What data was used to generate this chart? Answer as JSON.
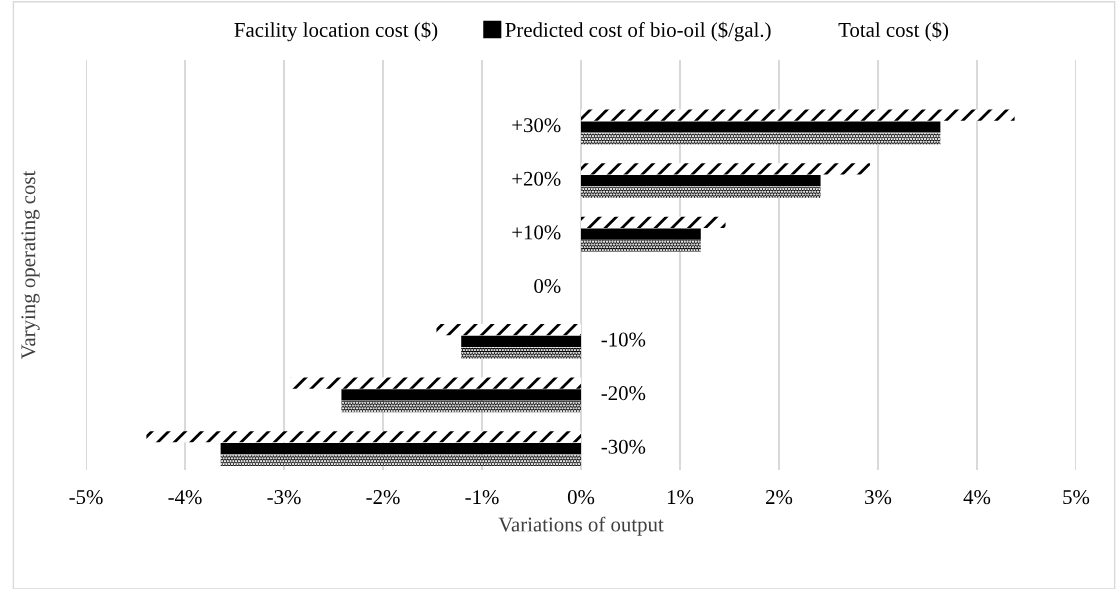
{
  "chart_data": {
    "type": "bar",
    "orientation": "horizontal",
    "xlabel": "Variations of output",
    "ylabel": "Varying operating cost",
    "categories": [
      "+30%",
      "+20%",
      "+10%",
      "0%",
      "-10%",
      "-20%",
      "-30%"
    ],
    "series": [
      {
        "name": "Facility location cost ($)",
        "color": "#000000",
        "values": [
          4.38,
          2.92,
          1.46,
          0,
          -1.46,
          -2.93,
          -4.39
        ]
      },
      {
        "name": "Predicted cost of bio-oil ($/gal.)",
        "color": "#000000",
        "values": [
          3.63,
          2.42,
          1.21,
          0,
          -1.21,
          -2.42,
          -3.64
        ]
      },
      {
        "name": "Total cost ($)",
        "color": "#000000",
        "values": [
          3.63,
          2.42,
          1.21,
          0,
          -1.21,
          -2.42,
          -3.64
        ]
      }
    ],
    "xlim": [
      -5,
      5
    ],
    "xticks": [
      {
        "value": -5,
        "label": "-5%"
      },
      {
        "value": -4,
        "label": "-4%"
      },
      {
        "value": -3,
        "label": "-3%"
      },
      {
        "value": -2,
        "label": "-2%"
      },
      {
        "value": -1,
        "label": "-1%"
      },
      {
        "value": 0,
        "label": "0%"
      },
      {
        "value": 1,
        "label": "1%"
      },
      {
        "value": 2,
        "label": "2%"
      },
      {
        "value": 3,
        "label": "3%"
      },
      {
        "value": 4,
        "label": "4%"
      },
      {
        "value": 5,
        "label": "5%"
      }
    ],
    "grid": "x",
    "legend": "top"
  }
}
